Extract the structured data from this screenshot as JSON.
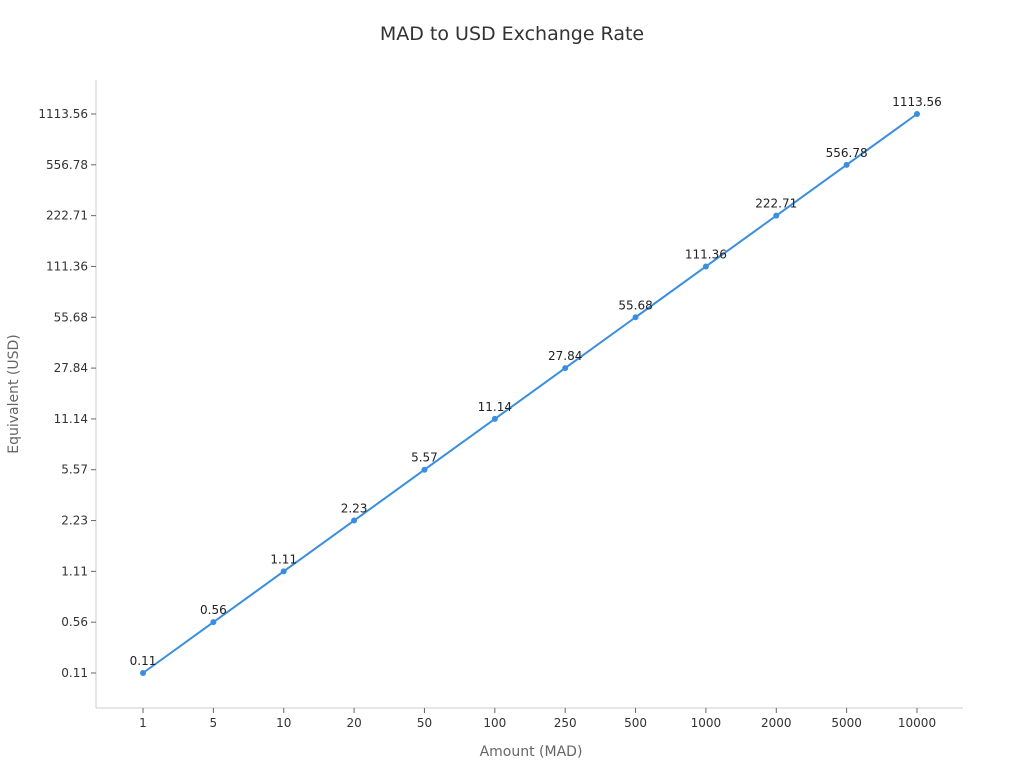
{
  "chart_data": {
    "type": "line",
    "title": "MAD to USD Exchange Rate",
    "xlabel": "Amount (MAD)",
    "ylabel": "Equivalent (USD)",
    "categories": [
      "1",
      "5",
      "10",
      "20",
      "50",
      "100",
      "250",
      "500",
      "1000",
      "2000",
      "5000",
      "10000"
    ],
    "y_ticks": [
      "0.11",
      "0.56",
      "1.11",
      "2.23",
      "5.57",
      "11.14",
      "27.84",
      "55.68",
      "111.36",
      "222.71",
      "556.78",
      "1113.56"
    ],
    "values": [
      0.11,
      0.56,
      1.11,
      2.23,
      5.57,
      11.14,
      27.84,
      55.68,
      111.36,
      222.71,
      556.78,
      1113.56
    ],
    "data_labels": [
      "0.11",
      "0.56",
      "1.11",
      "2.23",
      "5.57",
      "11.14",
      "27.84",
      "55.68",
      "111.36",
      "222.71",
      "556.78",
      "1113.56"
    ],
    "grid": false,
    "legend": "none",
    "line_color": "#3a8ee0"
  }
}
